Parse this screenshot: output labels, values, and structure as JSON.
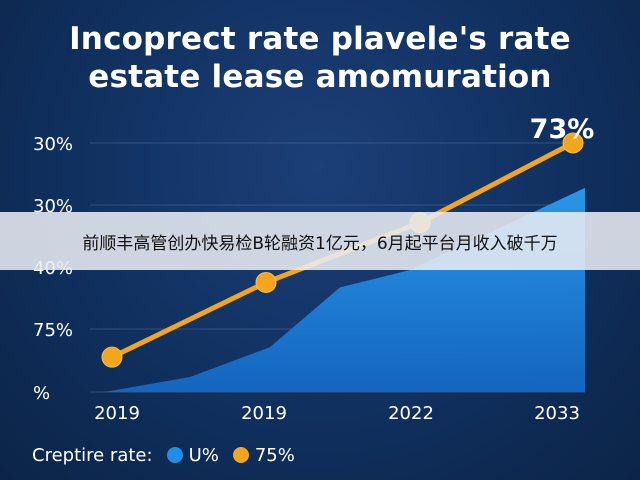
{
  "title_line1": "Incoprect rate plavele's rate",
  "title_line2": "estate lease amomuration",
  "banner_text": "前顺丰高管创办快易检B轮融资1亿元，6月起平台月收入破千万",
  "legend": {
    "label": "Creptire rate:",
    "items": [
      {
        "label": "U%",
        "color": "#1e8fe8"
      },
      {
        "label": "75%",
        "color": "#f4a51c"
      }
    ]
  },
  "chart_data": {
    "type": "line",
    "title": "Incoprect rate plavele's rate estate lease amomuration",
    "y_tick_labels": [
      "30%",
      "30%",
      "40%",
      "75%",
      "%"
    ],
    "x_tick_labels": [
      "2019",
      "2019",
      "2022",
      "2033"
    ],
    "peak_label": "73%",
    "series": [
      {
        "name": "75%",
        "kind": "line",
        "color": "#f4a51c",
        "values": [
          0.14,
          0.44,
          0.68,
          1.0
        ]
      },
      {
        "name": "U%",
        "kind": "area",
        "color": "#1e8fe8",
        "values": [
          0.0,
          0.06,
          0.18,
          0.42,
          0.49,
          0.82
        ]
      }
    ],
    "grid": true,
    "legend_position": "bottom-left"
  }
}
